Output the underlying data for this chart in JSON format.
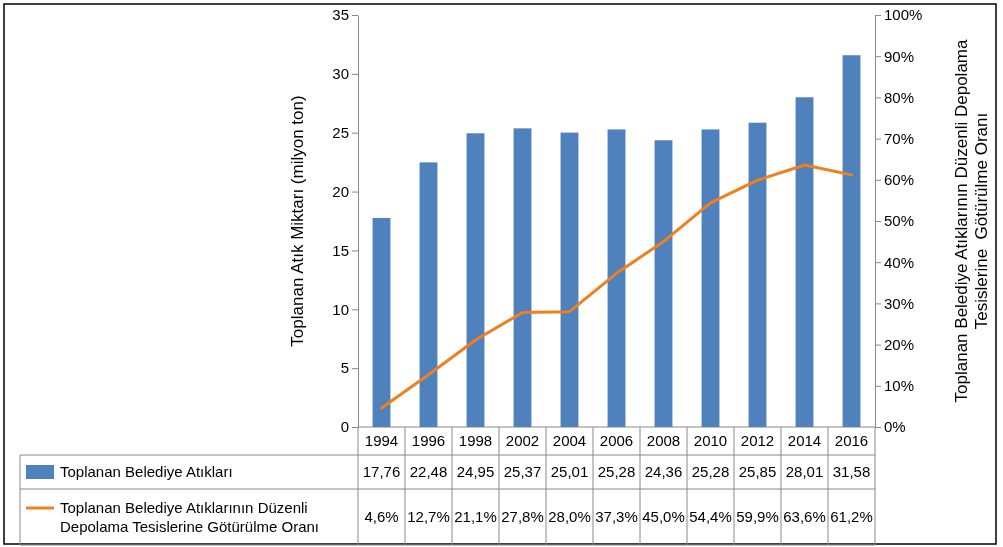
{
  "chart_data": {
    "type": "bar",
    "categories": [
      "1994",
      "1996",
      "1998",
      "2002",
      "2004",
      "2006",
      "2008",
      "2010",
      "2012",
      "2014",
      "2016"
    ],
    "series": [
      {
        "name": "Toplanan Belediye Atıkları",
        "color": "#4f81bd",
        "values": [
          17.76,
          22.48,
          24.95,
          25.37,
          25.01,
          25.28,
          24.36,
          25.28,
          25.85,
          28.01,
          31.58
        ],
        "value_labels": [
          "17,76",
          "22,48",
          "24,95",
          "25,37",
          "25,01",
          "25,28",
          "24,36",
          "25,28",
          "25,85",
          "28,01",
          "31,58"
        ]
      },
      {
        "name": "Toplanan Belediye Atıklarının Düzenli Depolama Tesislerine Götürülme Oranı",
        "type": "line",
        "axis": "y2",
        "color": "#f07f1e",
        "values": [
          4.6,
          12.7,
          21.1,
          27.8,
          28.0,
          37.3,
          45.0,
          54.4,
          59.9,
          63.6,
          61.2
        ],
        "value_labels": [
          "4,6%",
          "12,7%",
          "21,1%",
          "27,8%",
          "28,0%",
          "37,3%",
          "45,0%",
          "54,4%",
          "59,9%",
          "63,6%",
          "61,2%"
        ]
      }
    ],
    "ylabel": "Toplanan Atık Miktarı (milyon ton)",
    "y2label": "Toplanan Belediye Atıklarının Düzenli Depolama Tesislerine  Götürülme Oranı",
    "ylim": [
      0,
      35
    ],
    "yticks": [
      0,
      5,
      10,
      15,
      20,
      25,
      30,
      35
    ],
    "y2lim": [
      0,
      100
    ],
    "y2ticks": [
      {
        "value": 0,
        "label": "0%"
      },
      {
        "value": 10,
        "label": "10%"
      },
      {
        "value": 20,
        "label": "20%"
      },
      {
        "value": 30,
        "label": "30%"
      },
      {
        "value": 40,
        "label": "40%"
      },
      {
        "value": 50,
        "label": "50%"
      },
      {
        "value": 60,
        "label": "60%"
      },
      {
        "value": 70,
        "label": "70%"
      },
      {
        "value": 80,
        "label": "80%"
      },
      {
        "value": 90,
        "label": "90%"
      },
      {
        "value": 100,
        "label": "100%"
      }
    ],
    "legend": "bottom",
    "marker": "none"
  }
}
